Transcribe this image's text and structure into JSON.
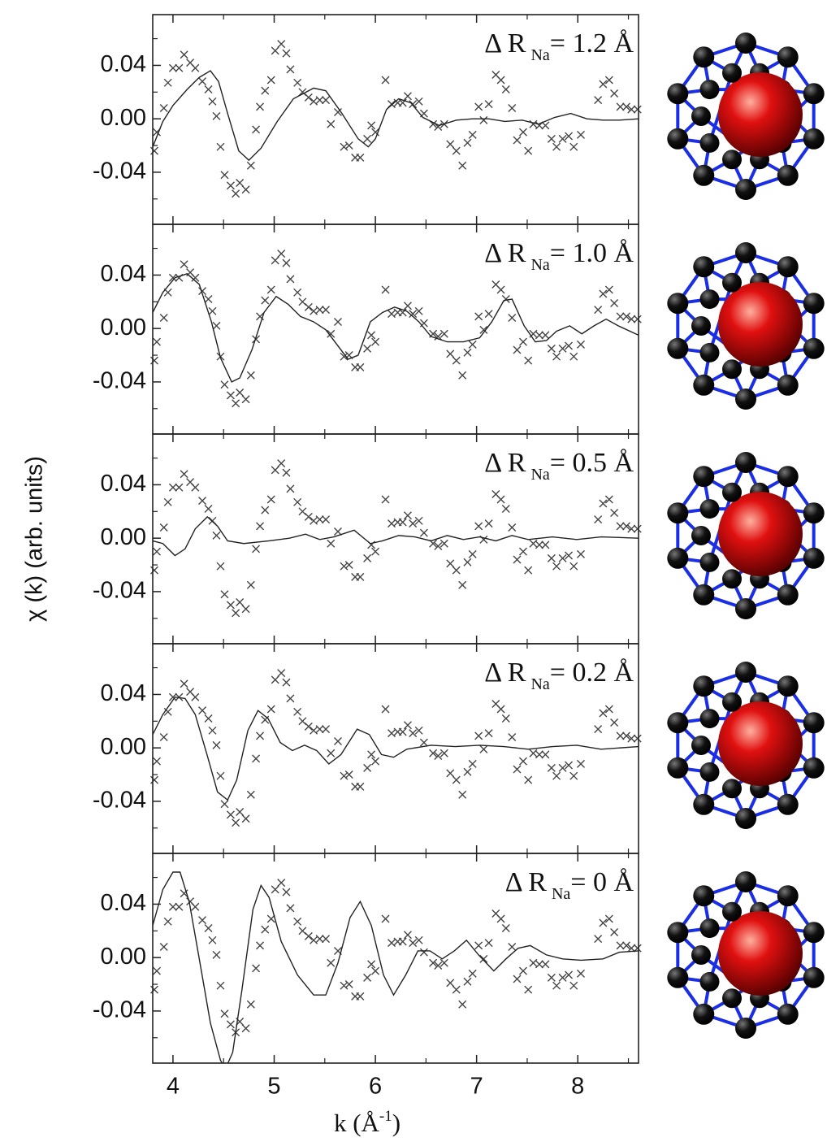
{
  "chart_data": {
    "type": "scatter-line",
    "x_label": {
      "text": "k (Å",
      "sup": "-1",
      "tail": ")"
    },
    "y_label": "χ (k) (arb. units)",
    "xlim": [
      3.8,
      8.6
    ],
    "xticks": [
      4,
      5,
      6,
      7,
      8
    ],
    "minor_xticks": [
      4.5,
      5.5,
      6.5,
      7.5,
      8.5
    ],
    "ylim": [
      -0.079,
      0.078
    ],
    "yticks": [
      0.04,
      {
        "value": 0,
        "label": "0.00"
      },
      -0.04
    ],
    "minor_yticks": [
      -0.06,
      -0.02,
      0.02,
      0.06
    ],
    "marker_color": "#444",
    "line_color": "#222",
    "measured": {
      "x": [
        3.816,
        3.84,
        3.91,
        3.95,
        4.0,
        4.06,
        4.11,
        4.17,
        4.22,
        4.29,
        4.35,
        4.39,
        4.43,
        4.47,
        4.51,
        4.57,
        4.62,
        4.66,
        4.72,
        4.77,
        4.82,
        4.86,
        4.91,
        4.97,
        5.01,
        5.07,
        5.12,
        5.16,
        5.23,
        5.28,
        5.34,
        5.39,
        5.45,
        5.51,
        5.56,
        5.63,
        5.69,
        5.74,
        5.8,
        5.85,
        5.92,
        5.96,
        6.0,
        6.1,
        6.16,
        6.22,
        6.27,
        6.32,
        6.37,
        6.43,
        6.48,
        6.57,
        6.62,
        6.68,
        6.74,
        6.8,
        6.86,
        6.91,
        6.96,
        7.02,
        7.07,
        7.12,
        7.19,
        7.24,
        7.29,
        7.35,
        7.4,
        7.46,
        7.51,
        7.56,
        7.62,
        7.68,
        7.74,
        7.79,
        7.85,
        7.91,
        7.96,
        8.03,
        8.2,
        8.25,
        8.31,
        8.36,
        8.42,
        8.48,
        8.53,
        8.59
      ],
      "values": [
        -0.024,
        -0.01,
        0.008,
        0.027,
        0.038,
        0.038,
        0.048,
        0.042,
        0.038,
        0.028,
        0.022,
        0.013,
        0.002,
        -0.021,
        -0.042,
        -0.05,
        -0.056,
        -0.048,
        -0.053,
        -0.035,
        -0.008,
        0.009,
        0.021,
        0.029,
        0.051,
        0.056,
        0.049,
        0.037,
        0.027,
        0.02,
        0.016,
        0.013,
        0.014,
        0.014,
        -0.004,
        0.005,
        -0.021,
        -0.02,
        -0.029,
        -0.029,
        -0.015,
        -0.005,
        -0.01,
        0.029,
        0.011,
        0.012,
        0.012,
        0.017,
        0.011,
        0.013,
        0.004,
        -0.004,
        -0.006,
        -0.004,
        -0.019,
        -0.024,
        -0.035,
        -0.018,
        -0.012,
        0.009,
        -0.001,
        0.011,
        0.033,
        0.029,
        0.022,
        0.008,
        -0.016,
        -0.01,
        -0.024,
        -0.004,
        -0.005,
        -0.005,
        -0.015,
        -0.021,
        -0.015,
        -0.013,
        -0.021,
        -0.012,
        0.014,
        0.026,
        0.029,
        0.019,
        0.009,
        0.009,
        0.007,
        0.007
      ]
    },
    "panels": [
      {
        "label": {
          "prefix": "Δ R",
          "sub": "Na",
          "suffix": "= 1.2 Å"
        },
        "fit": {
          "x": [
            3.8,
            3.9,
            4.0,
            4.14,
            4.26,
            4.37,
            4.45,
            4.54,
            4.65,
            4.75,
            4.87,
            5.03,
            5.19,
            5.39,
            5.51,
            5.67,
            5.83,
            5.93,
            6.0,
            6.11,
            6.23,
            6.35,
            6.47,
            6.63,
            6.8,
            6.96,
            7.12,
            7.28,
            7.45,
            7.61,
            7.77,
            7.93,
            8.09,
            8.25,
            8.41,
            8.6
          ],
          "values": [
            -0.021,
            -0.002,
            0.01,
            0.022,
            0.031,
            0.036,
            0.028,
            0.004,
            -0.024,
            -0.031,
            -0.022,
            -0.002,
            0.015,
            0.023,
            0.021,
            0.004,
            -0.015,
            -0.021,
            -0.015,
            0.007,
            0.015,
            0.012,
            0.001,
            -0.005,
            -0.001,
            0,
            0,
            -0.002,
            -0.001,
            -0.004,
            0.001,
            0.004,
            0,
            -0.001,
            -0.001,
            0
          ]
        }
      },
      {
        "label": {
          "prefix": "Δ R",
          "sub": "Na",
          "suffix": "= 1.0 Å"
        },
        "fit": {
          "x": [
            3.8,
            3.9,
            4.02,
            4.14,
            4.26,
            4.38,
            4.47,
            4.58,
            4.66,
            4.78,
            4.9,
            5.02,
            5.14,
            5.26,
            5.39,
            5.51,
            5.63,
            5.73,
            5.83,
            5.95,
            6.07,
            6.19,
            6.31,
            6.43,
            6.55,
            6.71,
            6.87,
            7.03,
            7.15,
            7.27,
            7.35,
            7.47,
            7.58,
            7.69,
            7.79,
            7.92,
            8.04,
            8.16,
            8.28,
            8.4,
            8.6
          ],
          "values": [
            0.012,
            0.027,
            0.038,
            0.041,
            0.033,
            0.005,
            -0.022,
            -0.04,
            -0.037,
            -0.016,
            0.012,
            0.024,
            0.018,
            0.009,
            0.005,
            -0.001,
            -0.013,
            -0.023,
            -0.02,
            0.005,
            0.012,
            0.016,
            0.013,
            0.005,
            -0.006,
            -0.01,
            -0.01,
            -0.007,
            0.005,
            0.021,
            0.022,
            0.002,
            -0.01,
            -0.009,
            -0.002,
            0.002,
            -0.004,
            0.002,
            0.007,
            0.002,
            -0.005
          ]
        }
      },
      {
        "label": {
          "prefix": "Δ R",
          "sub": "Na",
          "suffix": "= 0.5 Å"
        },
        "fit": {
          "x": [
            3.8,
            3.9,
            4.02,
            4.12,
            4.22,
            4.34,
            4.44,
            4.54,
            4.7,
            4.95,
            5.15,
            5.31,
            5.45,
            5.59,
            5.79,
            5.95,
            6.07,
            6.23,
            6.39,
            6.55,
            6.71,
            6.87,
            7.03,
            7.19,
            7.35,
            7.51,
            7.75,
            7.99,
            8.23,
            8.6
          ],
          "values": [
            -0.002,
            -0.004,
            -0.013,
            -0.008,
            0.007,
            0.016,
            0.009,
            -0.002,
            -0.004,
            -0.002,
            0,
            0.003,
            -0.001,
            0.001,
            0.006,
            -0.004,
            -0.002,
            0.002,
            0.001,
            -0.002,
            0.002,
            -0.001,
            0.001,
            -0.002,
            0.002,
            -0.001,
            0.001,
            -0.001,
            0.001,
            0
          ]
        }
      },
      {
        "label": {
          "prefix": "Δ R",
          "sub": "Na",
          "suffix": "= 0.2 Å"
        },
        "fit": {
          "x": [
            3.8,
            3.9,
            4.02,
            4.12,
            4.22,
            4.34,
            4.44,
            4.54,
            4.63,
            4.74,
            4.84,
            4.94,
            5.06,
            5.18,
            5.3,
            5.42,
            5.54,
            5.66,
            5.82,
            5.94,
            6.06,
            6.18,
            6.31,
            6.55,
            6.79,
            7.03,
            7.27,
            7.51,
            7.75,
            7.99,
            8.23,
            8.6
          ],
          "values": [
            0.01,
            0.025,
            0.038,
            0.037,
            0.025,
            -0.006,
            -0.033,
            -0.039,
            -0.024,
            0.013,
            0.028,
            0.022,
            0.004,
            -0.002,
            0.002,
            -0.002,
            -0.012,
            -0.005,
            0.014,
            0.01,
            -0.005,
            -0.007,
            -0.001,
            0.002,
            0.001,
            0.002,
            0.001,
            -0.001,
            0.001,
            0.002,
            -0.001,
            0.001
          ]
        }
      },
      {
        "label": {
          "prefix": "Δ R",
          "sub": "Na",
          "suffix": "= 0 Å"
        },
        "fit": {
          "x": [
            3.8,
            3.9,
            4.0,
            4.07,
            4.16,
            4.26,
            4.37,
            4.47,
            4.52,
            4.59,
            4.68,
            4.79,
            4.87,
            4.95,
            5.07,
            5.23,
            5.39,
            5.51,
            5.63,
            5.75,
            5.85,
            5.96,
            6.08,
            6.18,
            6.3,
            6.42,
            6.54,
            6.66,
            6.78,
            6.9,
            7.02,
            7.17,
            7.29,
            7.41,
            7.53,
            7.69,
            7.85,
            8.03,
            8.25,
            8.41,
            8.6
          ],
          "values": [
            0.024,
            0.051,
            0.064,
            0.064,
            0.042,
            -0.001,
            -0.049,
            -0.077,
            -0.083,
            -0.071,
            -0.025,
            0.036,
            0.054,
            0.045,
            0.012,
            -0.013,
            -0.028,
            -0.028,
            -0.004,
            0.03,
            0.042,
            0.024,
            -0.013,
            -0.028,
            -0.013,
            0.005,
            0.005,
            -0.001,
            0.005,
            0.013,
            0.002,
            -0.01,
            -0.001,
            0.007,
            0.009,
            0.002,
            -0.001,
            -0.002,
            -0.001,
            0.004,
            0.005
          ]
        }
      }
    ]
  }
}
